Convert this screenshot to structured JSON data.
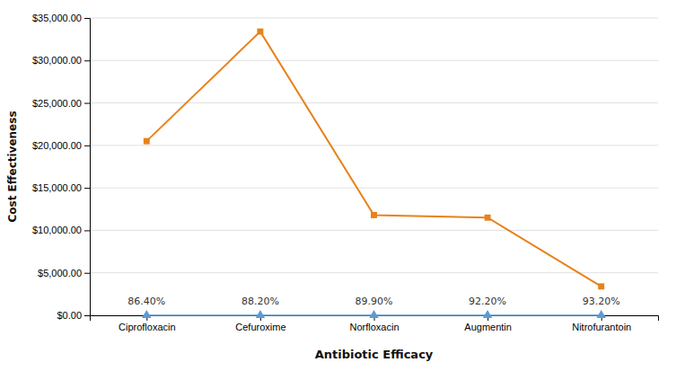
{
  "chart_data": {
    "type": "line",
    "xlabel": "Antibiotic Efficacy",
    "ylabel": "Cost Effectiveness",
    "categories": [
      "Ciprofloxacin",
      "Cefuroxime",
      "Norfloxacin",
      "Augmentin",
      "Nitrofurantoin"
    ],
    "series": [
      {
        "color": "#E8821A",
        "marker": "square",
        "values": [
          20500,
          33400,
          11800,
          11500,
          3400
        ]
      },
      {
        "color": "#5B9BD5",
        "marker": "triangle",
        "values": [
          0,
          0,
          0,
          0,
          0
        ]
      }
    ],
    "annotations": [
      {
        "text": "86.40%",
        "x": "Ciprofloxacin"
      },
      {
        "text": "88.20%",
        "x": "Cefuroxime"
      },
      {
        "text": "89.90%",
        "x": "Norfloxacin"
      },
      {
        "text": "92.20%",
        "x": "Augmentin"
      },
      {
        "text": "93.20%",
        "x": "Nitrofurantoin"
      }
    ],
    "ylim": [
      0,
      35000
    ],
    "yticks": [
      {
        "value": 0,
        "label": "$0.00"
      },
      {
        "value": 5000,
        "label": "$5,000.00"
      },
      {
        "value": 10000,
        "label": "$10,000.00"
      },
      {
        "value": 15000,
        "label": "$15,000.00"
      },
      {
        "value": 20000,
        "label": "$20,000.00"
      },
      {
        "value": 25000,
        "label": "$25,000.00"
      },
      {
        "value": 30000,
        "label": "$30,000.00"
      },
      {
        "value": 35000,
        "label": "$35,000.00"
      }
    ],
    "grid": true
  }
}
